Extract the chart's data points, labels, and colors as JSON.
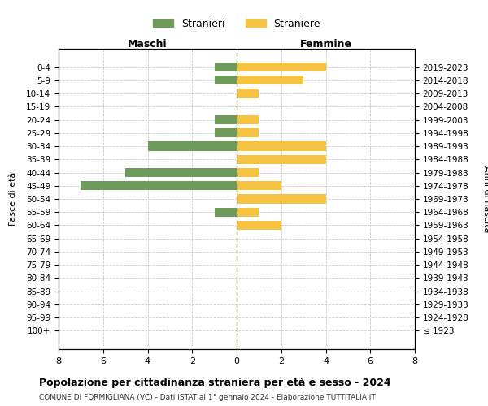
{
  "age_groups": [
    "100+",
    "95-99",
    "90-94",
    "85-89",
    "80-84",
    "75-79",
    "70-74",
    "65-69",
    "60-64",
    "55-59",
    "50-54",
    "45-49",
    "40-44",
    "35-39",
    "30-34",
    "25-29",
    "20-24",
    "15-19",
    "10-14",
    "5-9",
    "0-4"
  ],
  "birth_years": [
    "≤ 1923",
    "1924-1928",
    "1929-1933",
    "1934-1938",
    "1939-1943",
    "1944-1948",
    "1949-1953",
    "1954-1958",
    "1959-1963",
    "1964-1968",
    "1969-1973",
    "1974-1978",
    "1979-1983",
    "1984-1988",
    "1989-1993",
    "1994-1998",
    "1999-2003",
    "2004-2008",
    "2009-2013",
    "2014-2018",
    "2019-2023"
  ],
  "maschi": [
    0,
    0,
    0,
    0,
    0,
    0,
    0,
    0,
    0,
    1,
    0,
    7,
    5,
    0,
    4,
    1,
    1,
    0,
    0,
    1,
    1
  ],
  "femmine": [
    0,
    0,
    0,
    0,
    0,
    0,
    0,
    0,
    2,
    1,
    4,
    2,
    1,
    4,
    4,
    1,
    1,
    0,
    1,
    3,
    4
  ],
  "color_maschi": "#6d9b5a",
  "color_femmine": "#f5c242",
  "title": "Popolazione per cittadinanza straniera per età e sesso - 2024",
  "subtitle": "COMUNE DI FORMIGLIANA (VC) - Dati ISTAT al 1° gennaio 2024 - Elaborazione TUTTITALIA.IT",
  "label_maschi": "Stranieri",
  "label_femmine": "Straniere",
  "xlabel_left": "Maschi",
  "xlabel_right": "Femmine",
  "ylabel_left": "Fasce di età",
  "ylabel_right": "Anni di nascita",
  "xlim": 8,
  "background_color": "#ffffff",
  "grid_color": "#cccccc"
}
